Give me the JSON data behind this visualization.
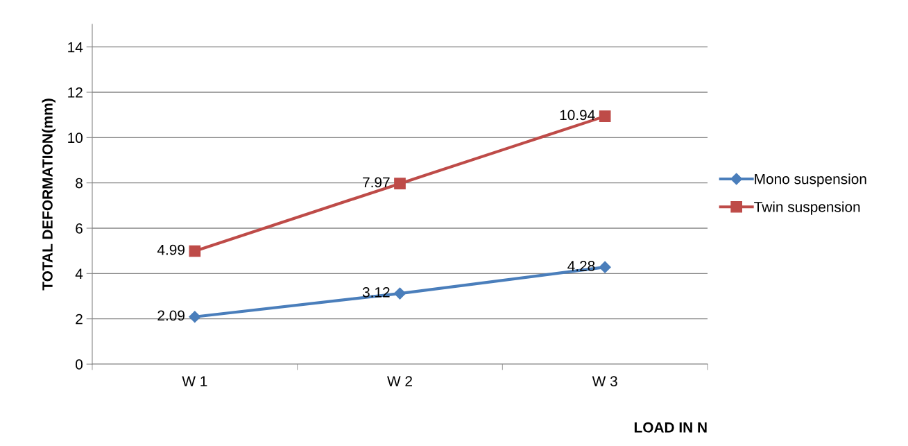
{
  "chart_data": {
    "type": "line",
    "xlabel": "LOAD IN N",
    "ylabel": "TOTAL DEFORMATION(mm)",
    "categories": [
      "W 1",
      "W 2",
      "W 3"
    ],
    "series": [
      {
        "name": "Mono suspension",
        "color": "#4a7ebb",
        "marker": "diamond",
        "values": [
          2.09,
          3.12,
          4.28
        ]
      },
      {
        "name": "Twin suspension",
        "color": "#be4b48",
        "marker": "square",
        "values": [
          4.99,
          7.97,
          10.94
        ]
      }
    ],
    "ylim": [
      0,
      15
    ],
    "yticks": [
      0,
      2,
      4,
      6,
      8,
      10,
      12,
      14
    ],
    "grid": "y",
    "legend": "right",
    "data_labels": true
  }
}
